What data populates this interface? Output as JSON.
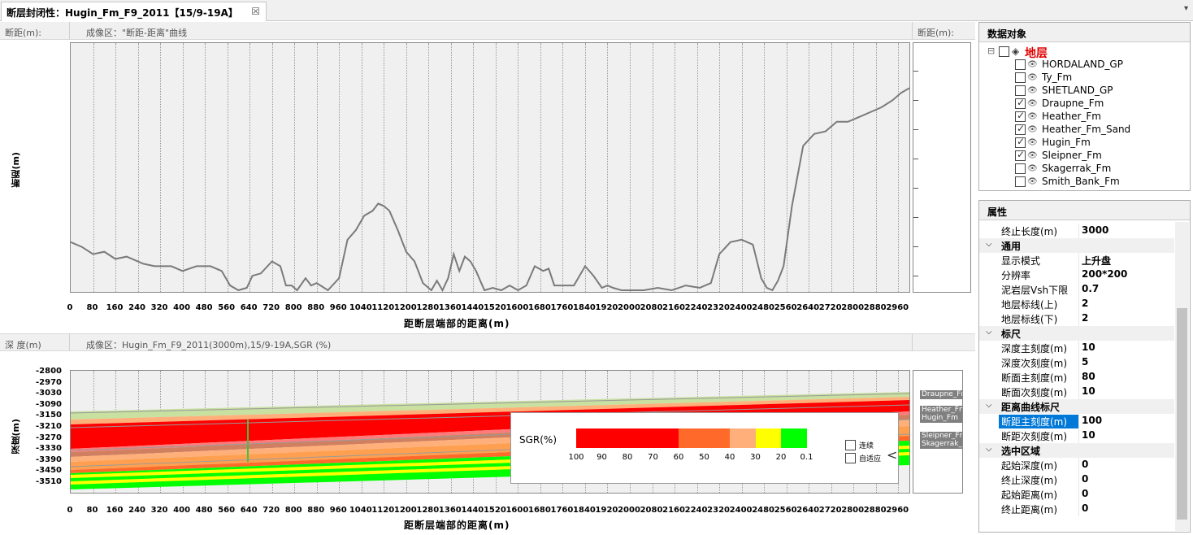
{
  "tab": {
    "title": "断层封闭性：Hugin_Fm_F9_2011【15/9-19A】",
    "close": "☒",
    "dropdown": "▾"
  },
  "top_panel": {
    "left_header": "断距(m):",
    "center_header": "成像区：\"断距-距离\"曲线",
    "right_header": "断距(m):",
    "y_axis_label": "断距(m)",
    "x_axis_label": "距断层端部的距离(m)"
  },
  "bottom_panel": {
    "left_header": "深  度(m)",
    "center_header": "成像区：Hugin_Fm_F9_2011(3000m),15/9-19A,SGR (%)",
    "y_axis_label": "深度(m)",
    "x_axis_label": "距断层端部的距离(m)",
    "horizon_tags": [
      "Draupne_Fm",
      "Heather_Fm",
      "Hugin_Fm",
      "Sleipner_Fm",
      "Skagerrak_Fm"
    ]
  },
  "legend": {
    "title": "SGR(%)",
    "ticks": [
      "100",
      "90",
      "80",
      "70",
      "60",
      "50",
      "40",
      "30",
      "20",
      "0.1"
    ],
    "colors": [
      "#ff0000",
      "#ff0000",
      "#ff0000",
      "#ff0000",
      "#ff6a2a",
      "#ff6a2a",
      "#ffb07a",
      "#ffff00",
      "#00ff00",
      "#00ff00"
    ],
    "option1": "连续",
    "option2": "自适应",
    "collapse": "<"
  },
  "objects_panel": {
    "title": "数据对象",
    "root_label": "地层",
    "items": [
      {
        "label": "HORDALAND_GP",
        "checked": false
      },
      {
        "label": "Ty_Fm",
        "checked": false
      },
      {
        "label": "SHETLAND_GP",
        "checked": false
      },
      {
        "label": "Draupne_Fm",
        "checked": true
      },
      {
        "label": "Heather_Fm",
        "checked": true
      },
      {
        "label": "Heather_Fm_Sand",
        "checked": true
      },
      {
        "label": "Hugin_Fm",
        "checked": true
      },
      {
        "label": "Sleipner_Fm",
        "checked": true
      },
      {
        "label": "Skagerrak_Fm",
        "checked": false
      },
      {
        "label": "Smith_Bank_Fm",
        "checked": false
      }
    ]
  },
  "properties_panel": {
    "title": "属性",
    "rows": [
      {
        "key": "终止长度(m)",
        "value": "3000"
      },
      {
        "category": "通用"
      },
      {
        "key": "显示模式",
        "value": "上升盘"
      },
      {
        "key": "分辨率",
        "value": "200*200"
      },
      {
        "key": "泥岩层Vsh下限",
        "value": "0.7"
      },
      {
        "key": "地层标线(上)",
        "value": "2"
      },
      {
        "key": "地层标线(下)",
        "value": "2"
      },
      {
        "category": "标尺"
      },
      {
        "key": "深度主刻度(m)",
        "value": "10"
      },
      {
        "key": "深度次刻度(m)",
        "value": "5"
      },
      {
        "key": "断面主刻度(m)",
        "value": "80"
      },
      {
        "key": "断面次刻度(m)",
        "value": "10"
      },
      {
        "category": "距离曲线标尺"
      },
      {
        "key": "断距主刻度(m)",
        "value": "100",
        "selected": true
      },
      {
        "key": "断距次刻度(m)",
        "value": "10"
      },
      {
        "category": "选中区域"
      },
      {
        "key": "起始深度(m)",
        "value": "0"
      },
      {
        "key": "终止深度(m)",
        "value": "0"
      },
      {
        "key": "起始距离(m)",
        "value": "0"
      },
      {
        "key": "终止距离(m)",
        "value": "0"
      }
    ]
  },
  "chart_data": [
    {
      "type": "line",
      "title": "\"断距-距离\"曲线",
      "xlabel": "距断层端部的距离(m)",
      "ylabel": "断距(m)",
      "xlim": [
        0,
        3000
      ],
      "x_ticks": [
        "0",
        "80",
        "160",
        "240",
        "320",
        "400",
        "480",
        "560",
        "640",
        "720",
        "800",
        "880",
        "960",
        "1040",
        "1120",
        "1200",
        "1280",
        "1360",
        "1440",
        "1520",
        "1600",
        "1680",
        "1760",
        "1840",
        "1920",
        "2000",
        "2080",
        "2160",
        "2240",
        "2320",
        "2400",
        "2480",
        "2560",
        "2640",
        "2720",
        "2800",
        "2880",
        "2960"
      ],
      "ylim": [
        0,
        1
      ],
      "series": [
        {
          "x": [
            0,
            40,
            80,
            120,
            160,
            200,
            260,
            300,
            360,
            400,
            450,
            500,
            540,
            570,
            600,
            630,
            650,
            680,
            720,
            750,
            770,
            790,
            810,
            840,
            860,
            880,
            920,
            960,
            990,
            1020,
            1050,
            1080,
            1100,
            1120,
            1140,
            1170,
            1200,
            1230,
            1260,
            1290,
            1310,
            1330,
            1350,
            1370,
            1390,
            1410,
            1430,
            1450,
            1480,
            1510,
            1540,
            1570,
            1600,
            1630,
            1660,
            1690,
            1710,
            1730,
            1760,
            1800,
            1840,
            1870,
            1900,
            1920,
            1940,
            1970,
            2000,
            2050,
            2100,
            2150,
            2200,
            2250,
            2290,
            2320,
            2360,
            2400,
            2440,
            2470,
            2490,
            2510,
            2530,
            2550,
            2580,
            2620,
            2660,
            2700,
            2740,
            2780,
            2820,
            2860,
            2900,
            2940,
            2970,
            3000
          ],
          "y": [
            0.2,
            0.18,
            0.15,
            0.16,
            0.13,
            0.14,
            0.11,
            0.1,
            0.1,
            0.08,
            0.1,
            0.1,
            0.08,
            0.02,
            0.0,
            0.01,
            0.06,
            0.07,
            0.12,
            0.1,
            0.02,
            0.02,
            0.0,
            0.05,
            0.02,
            0.03,
            0.0,
            0.05,
            0.21,
            0.25,
            0.31,
            0.33,
            0.36,
            0.35,
            0.33,
            0.25,
            0.16,
            0.12,
            0.03,
            0.0,
            0.04,
            0.0,
            0.05,
            0.15,
            0.08,
            0.14,
            0.12,
            0.08,
            0.0,
            0.01,
            0.0,
            0.02,
            0.0,
            0.02,
            0.1,
            0.08,
            0.09,
            0.02,
            0.02,
            0.02,
            0.1,
            0.06,
            0.01,
            0.02,
            0.01,
            0.0,
            0.0,
            0.0,
            0.01,
            0.0,
            0.02,
            0.01,
            0.03,
            0.15,
            0.2,
            0.21,
            0.19,
            0.05,
            0.01,
            0.0,
            0.04,
            0.1,
            0.35,
            0.6,
            0.65,
            0.66,
            0.7,
            0.7,
            0.72,
            0.74,
            0.76,
            0.79,
            0.82,
            0.84
          ]
        }
      ]
    },
    {
      "type": "heatmap",
      "title": "Hugin_Fm_F9_2011(3000m),15/9-19A,SGR (%)",
      "xlabel": "距断层端部的距离(m)",
      "ylabel": "深度(m)",
      "xlim": [
        0,
        3000
      ],
      "x_ticks": [
        "0",
        "80",
        "160",
        "240",
        "320",
        "400",
        "480",
        "560",
        "640",
        "720",
        "800",
        "880",
        "960",
        "1040",
        "1120",
        "1200",
        "1280",
        "1360",
        "1440",
        "1520",
        "1600",
        "1680",
        "1760",
        "1840",
        "1920",
        "2000",
        "2080",
        "2160",
        "2240",
        "2320",
        "2400",
        "2480",
        "2560",
        "2640",
        "2720",
        "2800",
        "2880",
        "2960"
      ],
      "y_ticks": [
        "-2800",
        "-2970",
        "-3030",
        "-3090",
        "-3150",
        "-3210",
        "-3270",
        "-3330",
        "-3390",
        "-3450",
        "-3510"
      ],
      "colorbar": "SGR(%)"
    }
  ]
}
